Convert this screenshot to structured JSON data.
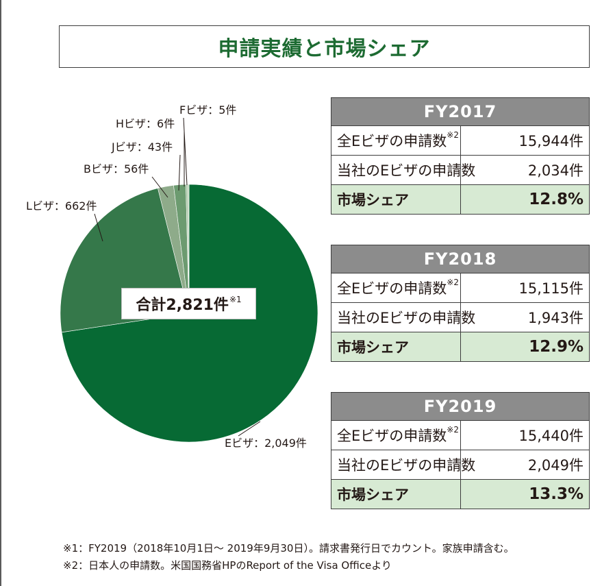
{
  "title": "申請実績と市場シェア",
  "chart_data": {
    "type": "pie",
    "unit": "件",
    "slices": [
      {
        "name": "Eビザ",
        "value": 2049,
        "label": "Eビザ：2,049件",
        "color": "#076a34"
      },
      {
        "name": "Lビザ",
        "value": 662,
        "label": "Lビザ：662件",
        "color": "#35784a"
      },
      {
        "name": "Bビザ",
        "value": 56,
        "label": "Bビザ：56件",
        "color": "#8eab8a"
      },
      {
        "name": "Jビザ",
        "value": 43,
        "label": "Jビザ：43件",
        "color": "#6c9b70"
      },
      {
        "name": "Hビザ",
        "value": 6,
        "label": "Hビザ：6件",
        "color": "#9ebd9a"
      },
      {
        "name": "Fビザ",
        "value": 5,
        "label": "Fビザ：5件",
        "color": "#b9cfb4"
      }
    ],
    "total_label": "合計2,821件",
    "total_note": "※1"
  },
  "tables": [
    {
      "year": "FY2017",
      "rows": [
        {
          "label": "全Eビザの申請数",
          "note": "※2",
          "value": "15,944件"
        },
        {
          "label": "当社のEビザの申請数",
          "note": "",
          "value": "2,034件"
        },
        {
          "label": "市場シェア",
          "note": "",
          "value": "12.8%"
        }
      ]
    },
    {
      "year": "FY2018",
      "rows": [
        {
          "label": "全Eビザの申請数",
          "note": "※2",
          "value": "15,115件"
        },
        {
          "label": "当社のEビザの申請数",
          "note": "",
          "value": "1,943件"
        },
        {
          "label": "市場シェア",
          "note": "",
          "value": "12.9%"
        }
      ]
    },
    {
      "year": "FY2019",
      "rows": [
        {
          "label": "全Eビザの申請数",
          "note": "※2",
          "value": "15,440件"
        },
        {
          "label": "当社のEビザの申請数",
          "note": "",
          "value": "2,049件"
        },
        {
          "label": "市場シェア",
          "note": "",
          "value": "13.3%"
        }
      ]
    }
  ],
  "footnotes": [
    "※1：FY2019（2018年10月1日〜 2019年9月30日）。請求書発行日でカウント。家族申請含む。",
    "※2：日本人の申請数。米国国務省HPのReport of the Visa Officeより"
  ]
}
